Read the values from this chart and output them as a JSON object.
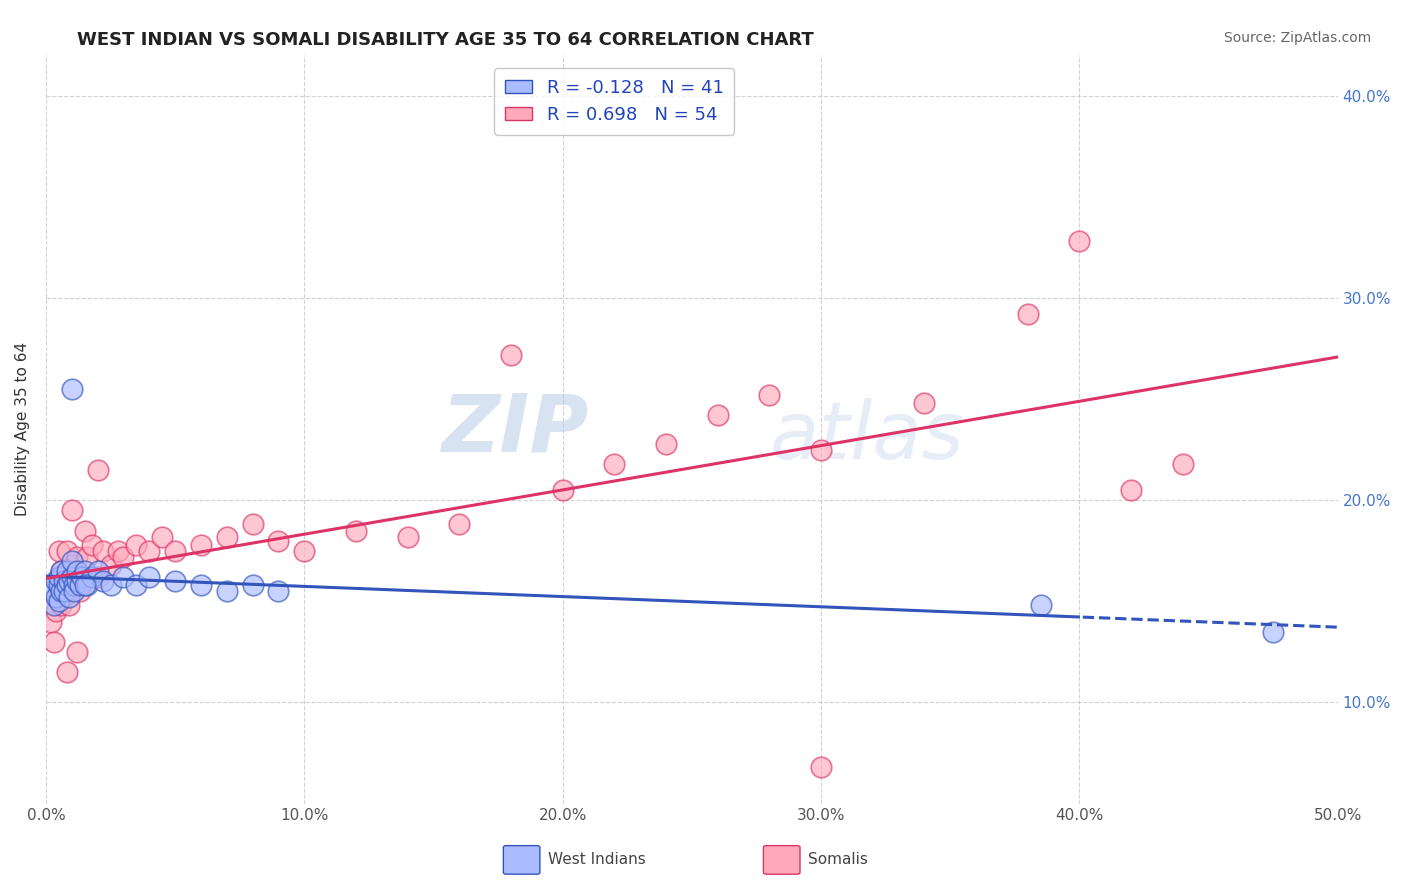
{
  "title": "WEST INDIAN VS SOMALI DISABILITY AGE 35 TO 64 CORRELATION CHART",
  "source_text": "Source: ZipAtlas.com",
  "ylabel": "Disability Age 35 to 64",
  "xlim": [
    0.0,
    0.5
  ],
  "ylim": [
    0.05,
    0.42
  ],
  "xtick_labels": [
    "0.0%",
    "10.0%",
    "20.0%",
    "30.0%",
    "40.0%",
    "50.0%"
  ],
  "xtick_values": [
    0.0,
    0.1,
    0.2,
    0.3,
    0.4,
    0.5
  ],
  "ytick_labels": [
    "10.0%",
    "20.0%",
    "30.0%",
    "40.0%"
  ],
  "ytick_values": [
    0.1,
    0.2,
    0.3,
    0.4
  ],
  "grid_color": "#cccccc",
  "background_color": "#ffffff",
  "legend_R_blue": "-0.128",
  "legend_N_blue": "41",
  "legend_R_pink": "0.698",
  "legend_N_pink": "54",
  "blue_color": "#aabbff",
  "pink_color": "#ffaabb",
  "line_blue_color": "#3355bb",
  "line_pink_color": "#dd3366",
  "watermark_zip": "ZIP",
  "watermark_atlas": "atlas",
  "blue_line_solid_end": 0.4,
  "west_indian_x": [
    0.002,
    0.003,
    0.004,
    0.004,
    0.005,
    0.005,
    0.005,
    0.006,
    0.006,
    0.007,
    0.007,
    0.008,
    0.008,
    0.009,
    0.009,
    0.01,
    0.01,
    0.011,
    0.011,
    0.012,
    0.012,
    0.013,
    0.014,
    0.015,
    0.016,
    0.018,
    0.02,
    0.022,
    0.025,
    0.03,
    0.035,
    0.04,
    0.05,
    0.06,
    0.07,
    0.08,
    0.09,
    0.01,
    0.015,
    0.385,
    0.475
  ],
  "west_indian_y": [
    0.155,
    0.148,
    0.152,
    0.16,
    0.158,
    0.162,
    0.15,
    0.155,
    0.165,
    0.16,
    0.155,
    0.158,
    0.165,
    0.152,
    0.16,
    0.162,
    0.17,
    0.158,
    0.155,
    0.16,
    0.165,
    0.158,
    0.162,
    0.165,
    0.158,
    0.162,
    0.165,
    0.16,
    0.158,
    0.162,
    0.158,
    0.162,
    0.16,
    0.158,
    0.155,
    0.158,
    0.155,
    0.255,
    0.158,
    0.148,
    0.135
  ],
  "somali_x": [
    0.002,
    0.003,
    0.004,
    0.005,
    0.005,
    0.006,
    0.006,
    0.007,
    0.008,
    0.008,
    0.009,
    0.009,
    0.01,
    0.01,
    0.011,
    0.012,
    0.013,
    0.014,
    0.015,
    0.016,
    0.018,
    0.02,
    0.022,
    0.025,
    0.028,
    0.03,
    0.035,
    0.04,
    0.045,
    0.05,
    0.06,
    0.07,
    0.08,
    0.09,
    0.1,
    0.12,
    0.14,
    0.16,
    0.18,
    0.2,
    0.22,
    0.24,
    0.26,
    0.28,
    0.3,
    0.34,
    0.38,
    0.4,
    0.42,
    0.44,
    0.008,
    0.012,
    0.02,
    0.3
  ],
  "somali_y": [
    0.14,
    0.13,
    0.145,
    0.155,
    0.175,
    0.148,
    0.165,
    0.152,
    0.155,
    0.175,
    0.148,
    0.162,
    0.158,
    0.195,
    0.168,
    0.172,
    0.155,
    0.162,
    0.185,
    0.172,
    0.178,
    0.162,
    0.175,
    0.168,
    0.175,
    0.172,
    0.178,
    0.175,
    0.182,
    0.175,
    0.178,
    0.182,
    0.188,
    0.18,
    0.175,
    0.185,
    0.182,
    0.188,
    0.272,
    0.205,
    0.218,
    0.228,
    0.242,
    0.252,
    0.068,
    0.248,
    0.292,
    0.328,
    0.205,
    0.218,
    0.115,
    0.125,
    0.215,
    0.225
  ]
}
